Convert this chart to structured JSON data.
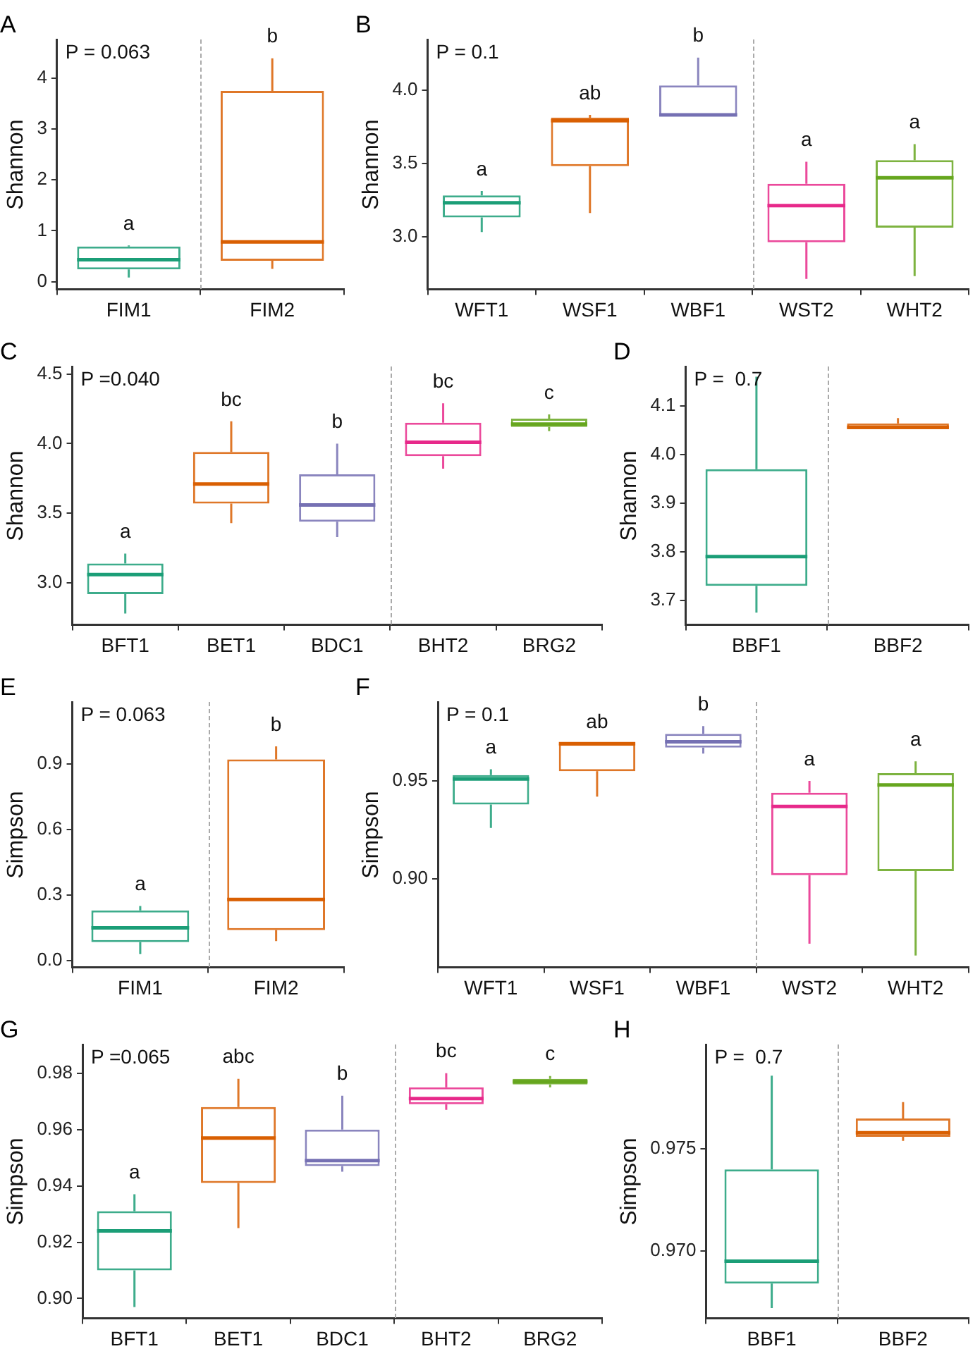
{
  "chart_data": [
    {
      "type": "box",
      "title": "A",
      "ylabel": "Shannon",
      "categories": [
        "FIM1",
        "FIM2"
      ],
      "colors": [
        "#1b9e77",
        "#d95f02"
      ],
      "ylim": [
        -0.15,
        4.75
      ],
      "yticks": [
        0,
        1,
        2,
        3,
        4
      ],
      "grid": false,
      "legend": false,
      "boxes": [
        {
          "low": 0.08,
          "q1": 0.24,
          "median": 0.43,
          "q3": 0.69,
          "high": 0.71
        },
        {
          "low": 0.25,
          "q1": 0.41,
          "median": 0.78,
          "q3": 3.75,
          "high": 4.39
        }
      ],
      "annotations": [
        "P = 0.063",
        "a",
        "b"
      ]
    },
    {
      "type": "box",
      "title": "B",
      "ylabel": "Shannon",
      "categories": [
        "WFT1",
        "WSF1",
        "WBF1",
        "WST2",
        "WHT2"
      ],
      "colors": [
        "#1b9e77",
        "#d95f02",
        "#7570b3",
        "#e7298a",
        "#66a61e"
      ],
      "ylim": [
        2.64,
        4.34
      ],
      "yticks": [
        {
          "value": 3,
          "label": "3.0"
        },
        {
          "value": 3.5,
          "label": "3.5"
        },
        {
          "value": 4,
          "label": "4.0"
        }
      ],
      "grid": false,
      "legend": false,
      "boxes": [
        {
          "low": 3.03,
          "q1": 3.13,
          "median": 3.23,
          "q3": 3.28,
          "high": 3.31
        },
        {
          "low": 3.16,
          "q1": 3.48,
          "median": 3.79,
          "q3": 3.81,
          "high": 3.83
        },
        {
          "low": 3.82,
          "q1": 3.82,
          "median": 3.83,
          "q3": 4.03,
          "high": 4.22
        },
        {
          "low": 2.71,
          "q1": 2.96,
          "median": 3.21,
          "q3": 3.36,
          "high": 3.51
        },
        {
          "low": 2.73,
          "q1": 3.06,
          "median": 3.4,
          "q3": 3.52,
          "high": 3.63
        }
      ],
      "annotations": [
        "P = 0.1",
        "a",
        "ab",
        "b",
        "a",
        "a"
      ]
    },
    {
      "type": "box",
      "title": "C",
      "ylabel": "Shannon",
      "categories": [
        "BFT1",
        "BET1",
        "BDC1",
        "BHT2",
        "BRG2"
      ],
      "colors": [
        "#1b9e77",
        "#d95f02",
        "#7570b3",
        "#e7298a",
        "#66a61e"
      ],
      "ylim": [
        2.7,
        4.55
      ],
      "yticks": [
        {
          "value": 3,
          "label": "3.0"
        },
        {
          "value": 3.5,
          "label": "3.5"
        },
        {
          "value": 4,
          "label": "4.0"
        },
        {
          "value": 4.5,
          "label": "4.5"
        }
      ],
      "grid": false,
      "legend": false,
      "boxes": [
        {
          "low": 2.78,
          "q1": 2.92,
          "median": 3.06,
          "q3": 3.14,
          "high": 3.21
        },
        {
          "low": 3.43,
          "q1": 3.57,
          "median": 3.71,
          "q3": 3.94,
          "high": 4.16
        },
        {
          "low": 3.33,
          "q1": 3.44,
          "median": 3.56,
          "q3": 3.78,
          "high": 4.0
        },
        {
          "low": 3.82,
          "q1": 3.91,
          "median": 4.01,
          "q3": 4.15,
          "high": 4.29
        },
        {
          "low": 4.09,
          "q1": 4.12,
          "median": 4.14,
          "q3": 4.18,
          "high": 4.21
        }
      ],
      "annotations": [
        "P =0.040",
        "a",
        "bc",
        "b",
        "bc",
        "c"
      ]
    },
    {
      "type": "box",
      "title": "D",
      "ylabel": "Shannon",
      "categories": [
        "BBF1",
        "BBF2"
      ],
      "colors": [
        "#1b9e77",
        "#d95f02"
      ],
      "ylim": [
        3.65,
        4.18
      ],
      "yticks": [
        {
          "value": 3.7,
          "label": "3.7"
        },
        {
          "value": 3.8,
          "label": "3.8"
        },
        {
          "value": 3.9,
          "label": "3.9"
        },
        {
          "value": 4,
          "label": "4.0"
        },
        {
          "value": 4.1,
          "label": "4.1"
        }
      ],
      "grid": false,
      "legend": false,
      "boxes": [
        {
          "low": 3.675,
          "q1": 3.73,
          "median": 3.79,
          "q3": 3.97,
          "high": 4.16
        },
        {
          "low": 4.052,
          "q1": 4.052,
          "median": 4.056,
          "q3": 4.064,
          "high": 4.075
        }
      ],
      "annotations": [
        "P =  0.7"
      ]
    },
    {
      "type": "box",
      "title": "E",
      "ylabel": "Simpson",
      "categories": [
        "FIM1",
        "FIM2"
      ],
      "colors": [
        "#1b9e77",
        "#d95f02"
      ],
      "ylim": [
        -0.03,
        1.18
      ],
      "yticks": [
        {
          "value": 0,
          "label": "0.0"
        },
        {
          "value": 0.3,
          "label": "0.3"
        },
        {
          "value": 0.6,
          "label": "0.6"
        },
        {
          "value": 0.9,
          "label": "0.9"
        }
      ],
      "grid": false,
      "legend": false,
      "boxes": [
        {
          "low": 0.03,
          "q1": 0.085,
          "median": 0.15,
          "q3": 0.23,
          "high": 0.25
        },
        {
          "low": 0.09,
          "q1": 0.14,
          "median": 0.28,
          "q3": 0.92,
          "high": 0.98
        }
      ],
      "annotations": [
        "P = 0.063",
        "a",
        "b"
      ]
    },
    {
      "type": "box",
      "title": "F",
      "ylabel": "Simpson",
      "categories": [
        "WFT1",
        "WSF1",
        "WBF1",
        "WST2",
        "WHT2"
      ],
      "colors": [
        "#1b9e77",
        "#d95f02",
        "#7570b3",
        "#e7298a",
        "#66a61e"
      ],
      "ylim": [
        0.855,
        0.99
      ],
      "yticks": [
        {
          "value": 0.9,
          "label": "0.90"
        },
        {
          "value": 0.95,
          "label": "0.95"
        }
      ],
      "grid": false,
      "legend": false,
      "boxes": [
        {
          "low": 0.926,
          "q1": 0.938,
          "median": 0.951,
          "q3": 0.953,
          "high": 0.956
        },
        {
          "low": 0.942,
          "q1": 0.955,
          "median": 0.969,
          "q3": 0.969,
          "high": 0.969
        },
        {
          "low": 0.964,
          "q1": 0.967,
          "median": 0.97,
          "q3": 0.974,
          "high": 0.978
        },
        {
          "low": 0.867,
          "q1": 0.902,
          "median": 0.937,
          "q3": 0.944,
          "high": 0.95
        },
        {
          "low": 0.861,
          "q1": 0.904,
          "median": 0.948,
          "q3": 0.954,
          "high": 0.96
        }
      ],
      "annotations": [
        "P = 0.1",
        "a",
        "ab",
        "b",
        "a",
        "a"
      ]
    },
    {
      "type": "box",
      "title": "G",
      "ylabel": "Simpson",
      "categories": [
        "BFT1",
        "BET1",
        "BDC1",
        "BHT2",
        "BRG2"
      ],
      "colors": [
        "#1b9e77",
        "#d95f02",
        "#7570b3",
        "#e7298a",
        "#66a61e"
      ],
      "ylim": [
        0.893,
        0.99
      ],
      "yticks": [
        {
          "value": 0.9,
          "label": "0.90"
        },
        {
          "value": 0.92,
          "label": "0.92"
        },
        {
          "value": 0.94,
          "label": "0.94"
        },
        {
          "value": 0.96,
          "label": "0.96"
        },
        {
          "value": 0.98,
          "label": "0.98"
        }
      ],
      "grid": false,
      "legend": false,
      "boxes": [
        {
          "low": 0.897,
          "q1": 0.91,
          "median": 0.924,
          "q3": 0.931,
          "high": 0.937
        },
        {
          "low": 0.925,
          "q1": 0.941,
          "median": 0.957,
          "q3": 0.968,
          "high": 0.978
        },
        {
          "low": 0.945,
          "q1": 0.947,
          "median": 0.949,
          "q3": 0.96,
          "high": 0.972
        },
        {
          "low": 0.967,
          "q1": 0.969,
          "median": 0.971,
          "q3": 0.975,
          "high": 0.98
        },
        {
          "low": 0.975,
          "q1": 0.976,
          "median": 0.977,
          "q3": 0.978,
          "high": 0.979
        }
      ],
      "annotations": [
        "P =0.065",
        "a",
        "abc",
        "b",
        "bc",
        "c"
      ]
    },
    {
      "type": "box",
      "title": "H",
      "ylabel": "Simpson",
      "categories": [
        "BBF1",
        "BBF2"
      ],
      "colors": [
        "#1b9e77",
        "#d95f02"
      ],
      "ylim": [
        0.9667,
        0.9801
      ],
      "yticks": [
        {
          "value": 0.97,
          "label": "0.970"
        },
        {
          "value": 0.975,
          "label": "0.975"
        }
      ],
      "grid": false,
      "legend": false,
      "boxes": [
        {
          "low": 0.9672,
          "q1": 0.9684,
          "median": 0.9695,
          "q3": 0.974,
          "high": 0.9786
        },
        {
          "low": 0.9754,
          "q1": 0.9756,
          "median": 0.9758,
          "q3": 0.9765,
          "high": 0.9773
        }
      ],
      "annotations": [
        "P =  0.7"
      ]
    }
  ]
}
